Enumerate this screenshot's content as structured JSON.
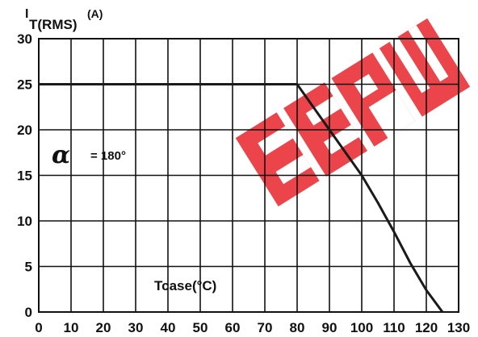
{
  "chart_data": {
    "type": "line",
    "ylabel_main": "I",
    "ylabel_sub": "T(RMS)",
    "ylabel_unit": "(A)",
    "xlabel": "Tcase(°C)",
    "annotation_symbol": "α",
    "annotation_value": "= 180°",
    "xlim": [
      0,
      130
    ],
    "ylim": [
      0,
      30
    ],
    "x_ticks": [
      "0",
      "10",
      "20",
      "30",
      "40",
      "50",
      "60",
      "70",
      "80",
      "90",
      "100",
      "110",
      "120",
      "130"
    ],
    "y_ticks": [
      "0",
      "5",
      "10",
      "15",
      "20",
      "25",
      "30"
    ],
    "grid": true,
    "series": [
      {
        "x": [
          0,
          80,
          85,
          90,
          95,
          100,
          105,
          110,
          115,
          120,
          125
        ],
        "y": [
          25,
          25,
          22.5,
          20,
          17.5,
          15,
          12,
          8.8,
          5.4,
          2.4,
          0
        ]
      }
    ],
    "watermark_text": "EEPW",
    "colors": {
      "line": "#1a1a1a",
      "grid": "#111111",
      "watermark": "#e8242b"
    }
  }
}
